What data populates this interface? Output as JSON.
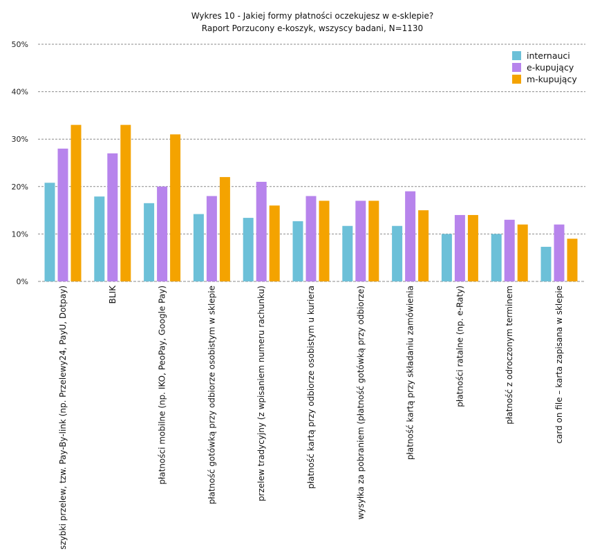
{
  "chart_data": {
    "type": "bar",
    "title": "Wykres 10 - Jakiej formy płatności oczekujesz w e-sklepie?",
    "subtitle": "Raport Porzucony e-koszyk, wszyscy badani, N=1130",
    "xlabel": "",
    "ylabel": "",
    "ylim": [
      0,
      50
    ],
    "yticks": [
      "0%",
      "10%",
      "20%",
      "30%",
      "40%",
      "50%"
    ],
    "ytick_values": [
      0,
      10,
      20,
      30,
      40,
      50
    ],
    "grid": true,
    "legend_position": "top-right",
    "categories": [
      "szybki przelew, tzw. Pay-By-link (np. Przelewy24, PayU, Dotpay)",
      "BLIK",
      "płatności mobilne (np. IKO, PeoPay, Google Pay)",
      "płatność gotówką przy odbiorze osobistym w sklepie",
      "przelew tradycyjny (z wpisaniem numeru rachunku)",
      "płatność kartą przy odbiorze osobistym u kuriera",
      "wysyłka za pobraniem (płatność gotówką przy odbiorze)",
      "płatność kartą przy składaniu zamówienia",
      "płatności ratalne (np. e-Raty)",
      "płatność z odroczonym terminem",
      "card on file – karta zapisana w sklepie"
    ],
    "series": [
      {
        "name": "internauci",
        "color": "#6cc0d8",
        "values": [
          20.8,
          17.9,
          16.5,
          14.2,
          13.4,
          12.7,
          11.7,
          11.7,
          10.0,
          10.0,
          7.3
        ]
      },
      {
        "name": "e-kupujący",
        "color": "#b784ec",
        "values": [
          28.0,
          27.0,
          20.0,
          18.0,
          21.0,
          18.0,
          17.0,
          19.0,
          14.0,
          13.0,
          12.0
        ]
      },
      {
        "name": "m-kupujący",
        "color": "#f4a300",
        "values": [
          33.0,
          33.0,
          31.0,
          22.0,
          16.0,
          17.0,
          17.0,
          15.0,
          14.0,
          12.0,
          9.0
        ]
      }
    ]
  }
}
